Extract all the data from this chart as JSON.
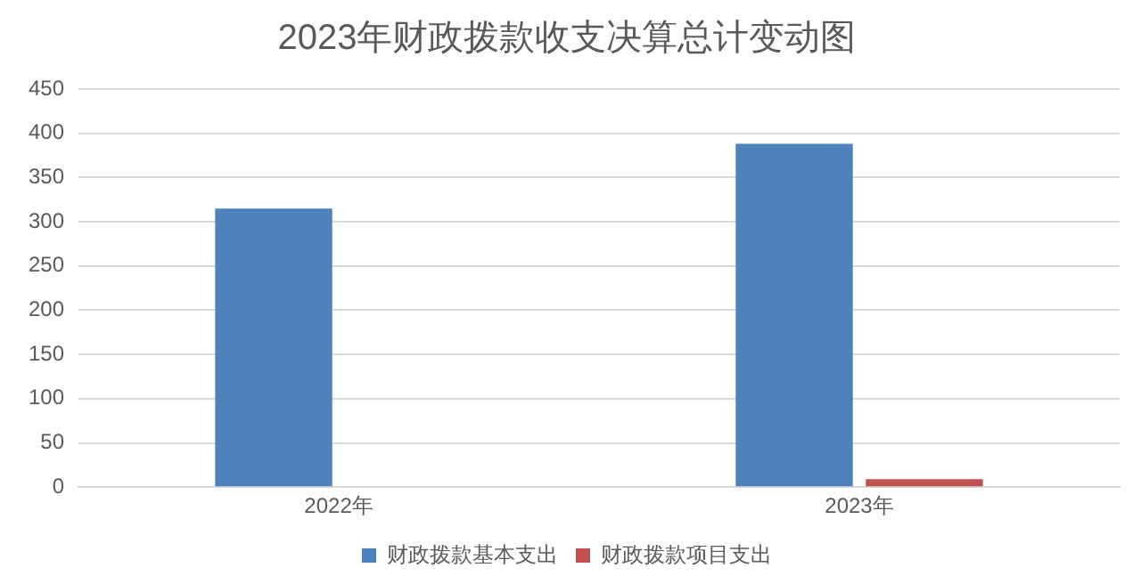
{
  "chart_data": {
    "type": "bar",
    "title": "2023年财政拨款收支决算总计变动图",
    "categories": [
      "2022年",
      "2023年"
    ],
    "series": [
      {
        "name": "财政拨款基本支出",
        "color": "#4f81bd",
        "values": [
          315,
          388
        ]
      },
      {
        "name": "财政拨款项目支出",
        "color": "#c0504d",
        "values": [
          0,
          9
        ]
      }
    ],
    "ylim": [
      0,
      450
    ],
    "yticks": [
      0,
      50,
      100,
      150,
      200,
      250,
      300,
      350,
      400,
      450
    ],
    "grid": "y",
    "legend": "bottom"
  }
}
